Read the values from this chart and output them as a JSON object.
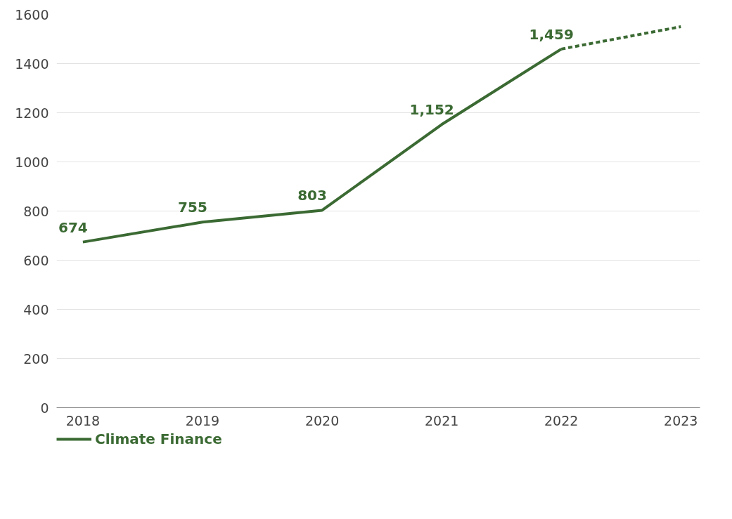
{
  "chart_data": {
    "type": "line",
    "categories": [
      "2018",
      "2019",
      "2020",
      "2021",
      "2022",
      "2023"
    ],
    "series": [
      {
        "name": "Climate Finance",
        "color": "#3b6a33",
        "values": [
          674,
          755,
          803,
          1152,
          1459,
          null
        ],
        "value_labels": [
          "674",
          "755",
          "803",
          "1,152",
          "1,459",
          null
        ]
      },
      {
        "color": "#3b6a33",
        "values": [
          null,
          null,
          null,
          null,
          1459,
          1550
        ],
        "line_style": "dashed"
      }
    ],
    "ylim": [
      0,
      1600
    ],
    "yticks": [
      0,
      200,
      400,
      600,
      800,
      1000,
      1200,
      1400,
      1600
    ],
    "grid": "y",
    "legend": "bottom left",
    "line_style": "solid"
  }
}
